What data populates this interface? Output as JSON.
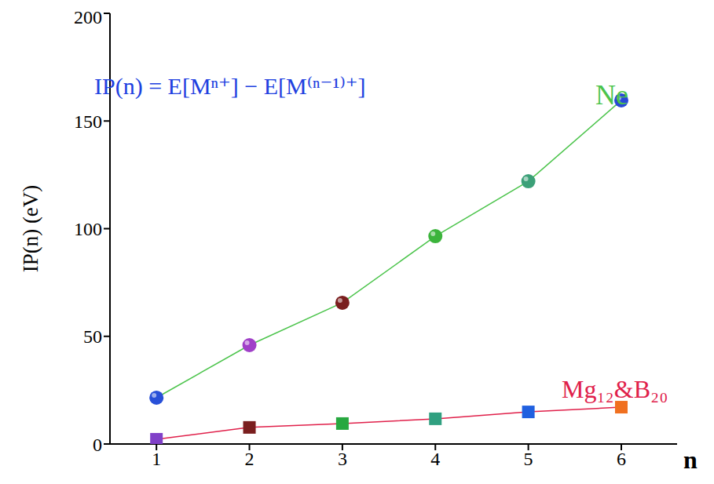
{
  "chart_data": {
    "type": "line",
    "annotation": "IP(n) = E[Mⁿ⁺] − E[M⁽ⁿ⁻¹⁾⁺]",
    "x_label": "n",
    "y_label": "IP(n) (eV)",
    "x": [
      1,
      2,
      3,
      4,
      5,
      6
    ],
    "series": [
      {
        "name": "Ne",
        "color": "#4cc44c",
        "marker": "circle",
        "colors": [
          "#2850d8",
          "#a040c8",
          "#7a1e1e",
          "#3cb43c",
          "#3ca078",
          "#2848d8"
        ],
        "values": [
          21.5,
          45.9,
          65.6,
          96.5,
          122,
          159.6
        ]
      },
      {
        "name": "Mg₁₂&B₂₀",
        "color": "#e0204a",
        "marker": "square",
        "colors": [
          "#8040c8",
          "#7a1e1e",
          "#28a840",
          "#30a080",
          "#2060e0",
          "#f07020"
        ],
        "values": [
          2.2,
          7.7,
          9.5,
          11.7,
          14.9,
          17.1
        ]
      }
    ],
    "xlim": [
      0.5,
      6.6
    ],
    "xticks": [
      1,
      2,
      3,
      4,
      5,
      6
    ],
    "ylim": [
      0,
      200
    ],
    "yticks": [
      0,
      50,
      100,
      150,
      200
    ],
    "grid": false
  }
}
